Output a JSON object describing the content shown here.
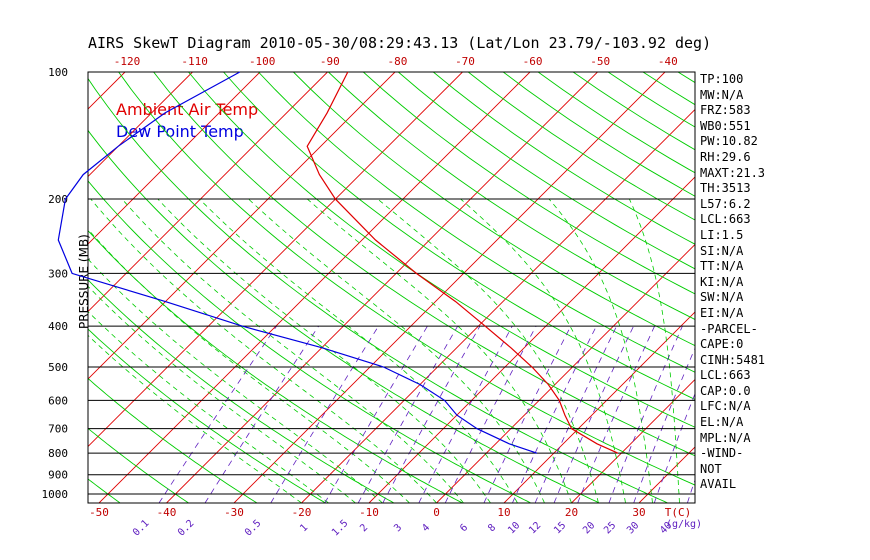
{
  "title": "AIRS SkewT Diagram 2010-05-30/08:29:43.13 (Lat/Lon 23.79/-103.92 deg)",
  "legend": {
    "air": "Ambient Air Temp",
    "dew": "Dew Point Temp"
  },
  "ylabel": "PRESSURE (MB)",
  "stats": [
    "TP:100",
    "MW:N/A",
    "FRZ:583",
    "WB0:551",
    "PW:10.82",
    "RH:29.6",
    "MAXT:21.3",
    "TH:3513",
    "L57:6.2",
    "LCL:663",
    "LI:1.5",
    "SI:N/A",
    "TT:N/A",
    "KI:N/A",
    "SW:N/A",
    "EI:N/A",
    "-PARCEL-",
    "CAPE:0",
    "CINH:5481",
    "LCL:663",
    "CAP:0.0",
    "LFC:N/A",
    "EL:N/A",
    "MPL:N/A",
    "-WIND-",
    "NOT",
    "AVAIL"
  ],
  "colors": {
    "air": "#e00000",
    "dew": "#0000e0",
    "isotherm": "#e00000",
    "dry_adiabat": "#00cc00",
    "mixing_ratio": "#6020c0",
    "axis_text": "#c00000",
    "mixing_text": "#6020c0"
  },
  "chart_data": {
    "type": "line",
    "title": "AIRS SkewT Diagram 2010-05-30/08:29:43.13 (Lat/Lon 23.79/-103.92 deg)",
    "ylabel": "PRESSURE (MB)",
    "xlabel": "T(C)",
    "y_scale": "log",
    "ylim": [
      1050,
      100
    ],
    "pressure_ticks": [
      100,
      200,
      300,
      400,
      500,
      600,
      700,
      800,
      900,
      1000
    ],
    "bottom_temp_ticks": [
      -50,
      -40,
      -30,
      -20,
      -10,
      0,
      10,
      20,
      30
    ],
    "top_temp_ticks": [
      -120,
      -110,
      -100,
      -90,
      -80,
      -70,
      -60,
      -50,
      -40
    ],
    "mixing_ratio_labels": [
      "0.1",
      "0.2",
      "0.5",
      "1",
      "1.5",
      "2",
      "3",
      "4",
      "6",
      "8",
      "10",
      "12",
      "15",
      "20",
      "25",
      "30",
      "40"
    ],
    "mixing_ratio_unit": "(g/kg)",
    "series": [
      {
        "name": "Ambient Air Temp",
        "pressure": [
          800,
          760,
          700,
          650,
          600,
          550,
          500,
          450,
          400,
          350,
          300,
          250,
          200,
          175,
          150,
          125,
          100
        ],
        "temp": [
          19.5,
          15,
          9,
          6,
          3,
          -1,
          -6,
          -12,
          -19,
          -27,
          -37,
          -48,
          -60,
          -66,
          -72,
          -74,
          -77
        ]
      },
      {
        "name": "Dew Point Temp",
        "pressure": [
          800,
          760,
          700,
          650,
          600,
          550,
          500,
          450,
          400,
          350,
          300,
          250,
          200,
          175,
          150,
          125,
          100
        ],
        "temp": [
          7.5,
          2,
          -5,
          -10,
          -14,
          -20,
          -28,
          -40,
          -55,
          -70,
          -88,
          -95,
          -100,
          -101,
          -100,
          -98,
          -93
        ]
      }
    ]
  }
}
